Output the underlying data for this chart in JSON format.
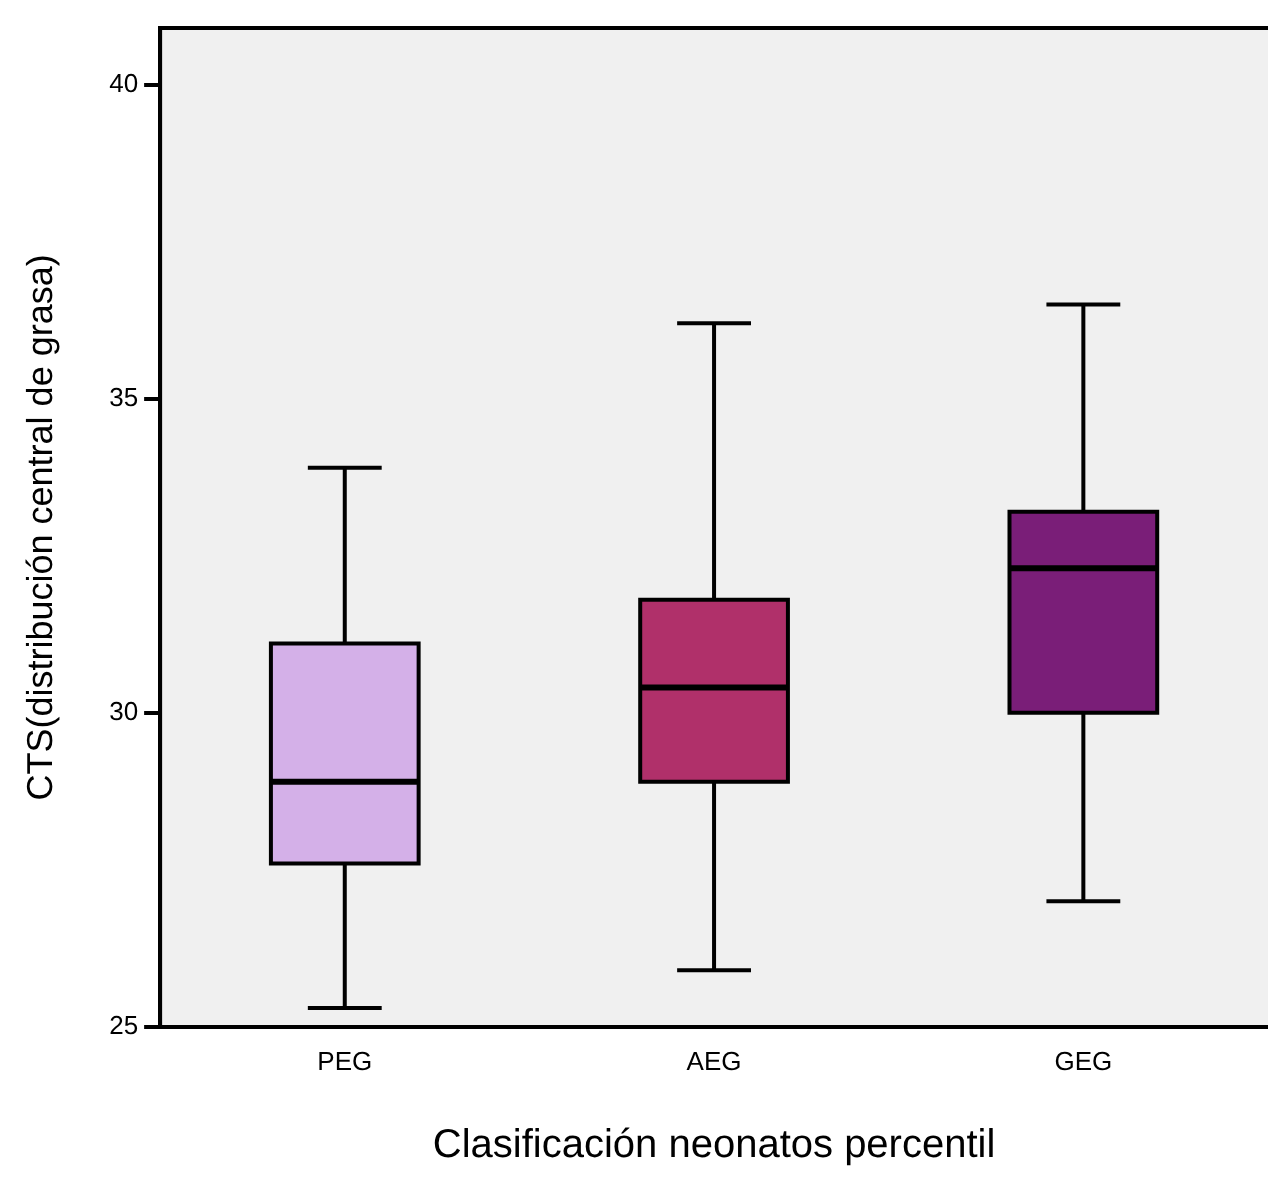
{
  "chart_data": {
    "type": "box",
    "xlabel": "Clasificación neonatos percentil",
    "ylabel": "CTS(distribución central de grasa)",
    "categories": [
      "PEG",
      "AEG",
      "GEG"
    ],
    "colors": [
      "#d4b0e8",
      "#b0306a",
      "#7a1e78"
    ],
    "boxes": [
      {
        "low": 25.3,
        "q1": 27.6,
        "median": 28.9,
        "q3": 31.1,
        "high": 33.9
      },
      {
        "low": 25.9,
        "q1": 28.9,
        "median": 30.4,
        "q3": 31.8,
        "high": 36.2
      },
      {
        "low": 27.0,
        "q1": 30.0,
        "median": 32.3,
        "q3": 33.2,
        "high": 36.5
      }
    ],
    "ylim": [
      25,
      40.9
    ],
    "yticks": [
      25,
      30,
      35,
      40
    ]
  }
}
